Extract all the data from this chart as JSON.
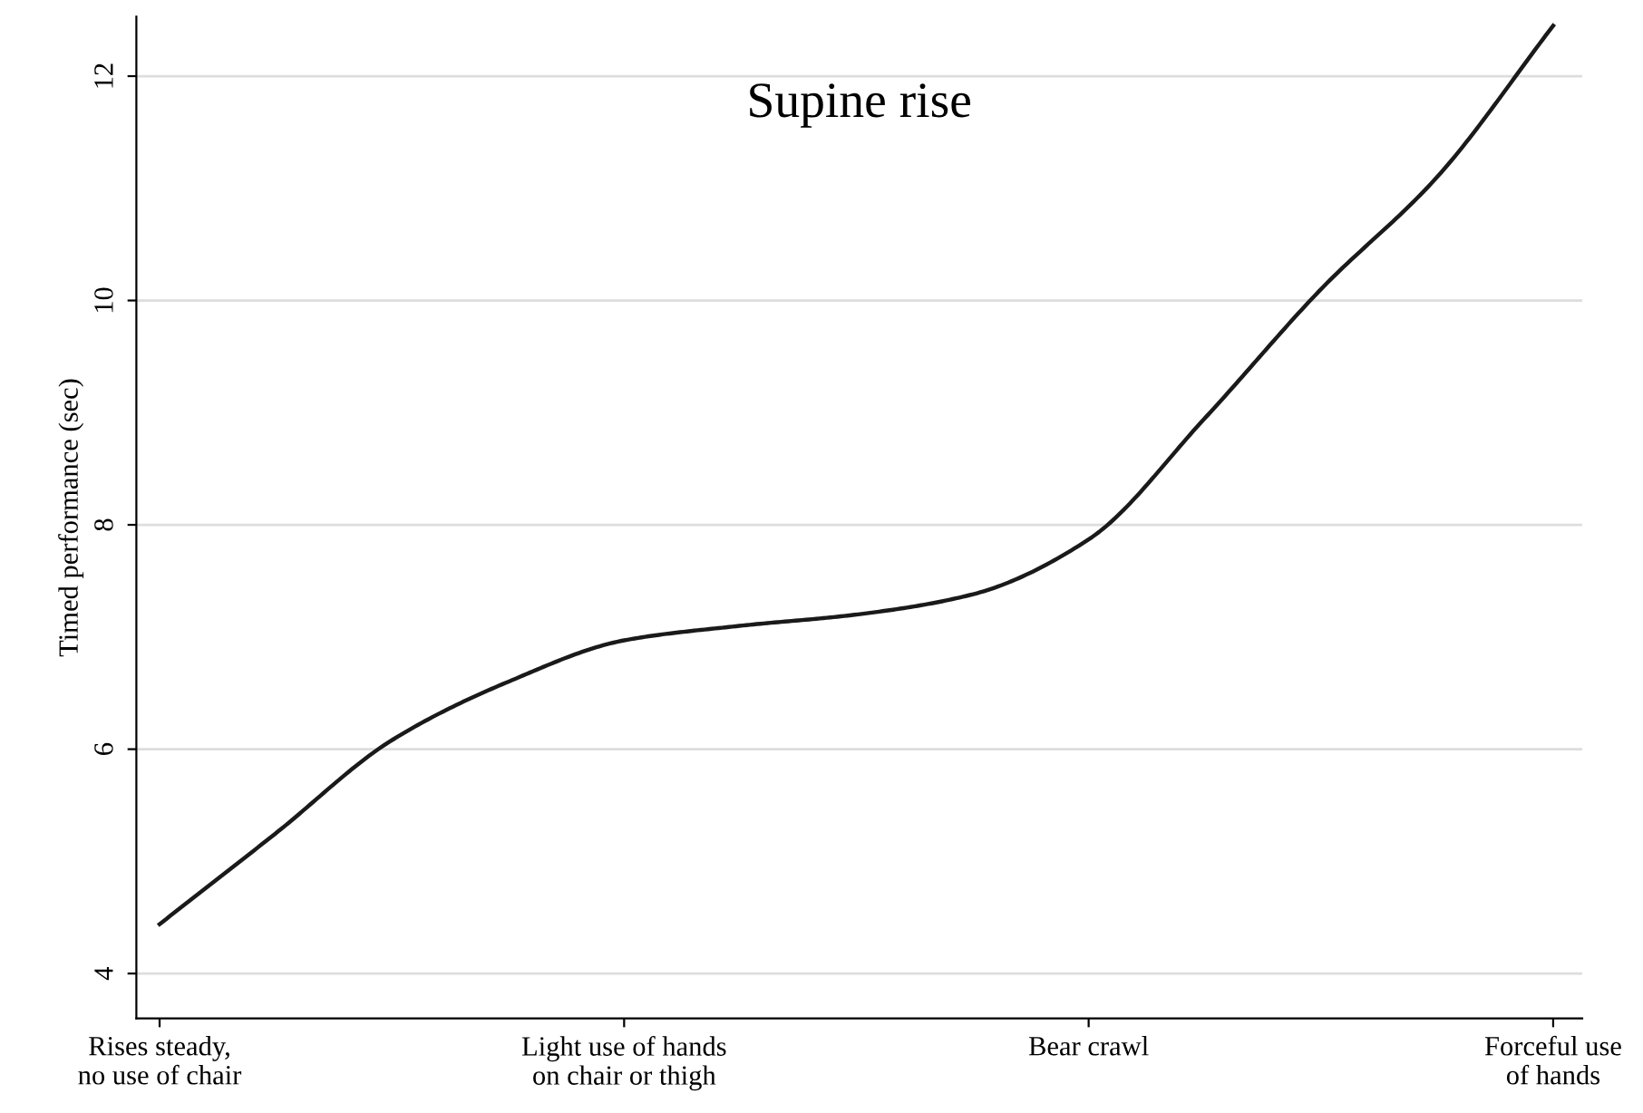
{
  "chart_data": {
    "type": "line",
    "title": "Supine rise",
    "ylabel": "Timed performance (sec)",
    "categories": [
      "Rises steady,\nno use of chair",
      null,
      null,
      null,
      "Light use of hands\non chair or thigh",
      null,
      null,
      null,
      "Bear crawl",
      null,
      null,
      null,
      "Forceful use\nof hands"
    ],
    "series": [
      {
        "color": "#1a1a1a",
        "values": [
          4.44,
          5.25,
          6.08,
          6.6,
          6.97,
          7.1,
          7.2,
          7.38,
          7.87,
          8.95,
          10.1,
          11.1,
          12.45
        ]
      }
    ],
    "ylim": [
      3.6,
      12.53
    ],
    "yticks": [
      4,
      6,
      8,
      10,
      12
    ],
    "grid": "y",
    "marker": "none",
    "line_style": "solid",
    "legend": false
  }
}
